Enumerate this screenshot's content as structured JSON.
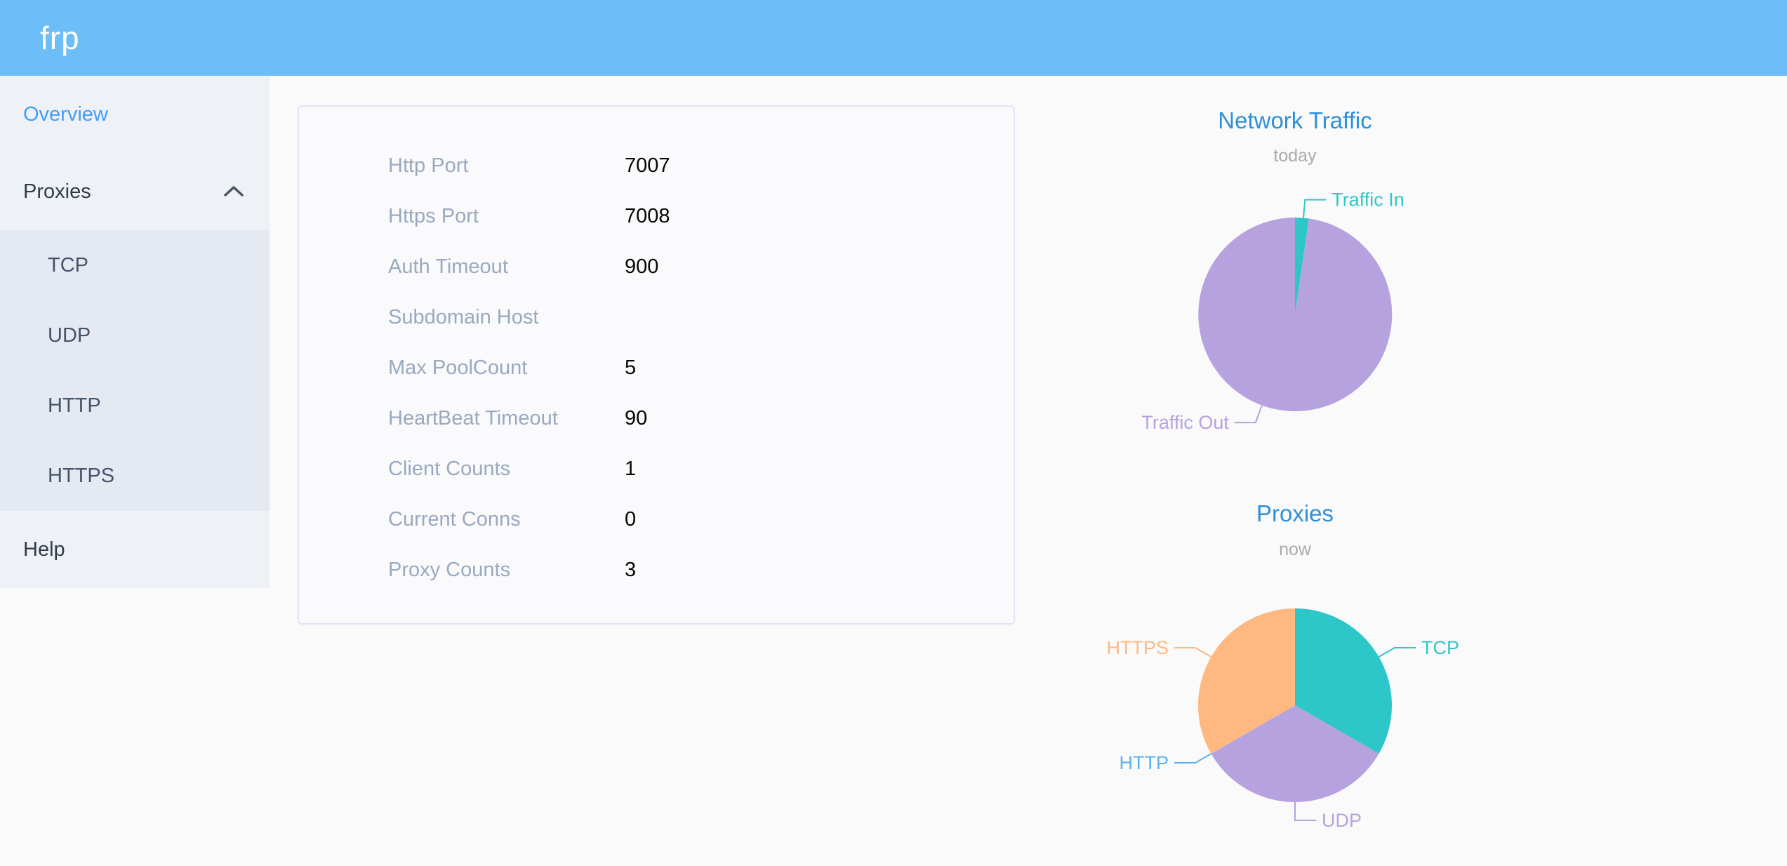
{
  "header": {
    "logo": "frp"
  },
  "sidebar": {
    "items": [
      {
        "label": "Overview",
        "active": true
      },
      {
        "label": "Proxies",
        "expanded": true,
        "children": [
          {
            "label": "TCP"
          },
          {
            "label": "UDP"
          },
          {
            "label": "HTTP"
          },
          {
            "label": "HTTPS"
          }
        ]
      },
      {
        "label": "Help"
      }
    ]
  },
  "server_info": {
    "rows": [
      {
        "label": "Http Port",
        "value": "7007"
      },
      {
        "label": "Https Port",
        "value": "7008"
      },
      {
        "label": "Auth Timeout",
        "value": "900"
      },
      {
        "label": "Subdomain Host",
        "value": ""
      },
      {
        "label": "Max PoolCount",
        "value": "5"
      },
      {
        "label": "HeartBeat Timeout",
        "value": "90"
      },
      {
        "label": "Client Counts",
        "value": "1"
      },
      {
        "label": "Current Conns",
        "value": "0"
      },
      {
        "label": "Proxy Counts",
        "value": "3"
      }
    ]
  },
  "chart_data": [
    {
      "type": "pie",
      "title": "Network Traffic",
      "subtitle": "today",
      "legend_position": "none",
      "labels": "outside-with-connector-lines",
      "slices": [
        {
          "name": "Traffic In",
          "value": 2.3,
          "unit": "% of total (estimated from slice angle)",
          "color": "#2ec7c9",
          "label_angle": 5,
          "side": "right"
        },
        {
          "name": "Traffic Out",
          "value": 97.7,
          "unit": "% of total (estimated from slice angle)",
          "color": "#b6a2de",
          "label_angle": 200,
          "side": "left"
        }
      ]
    },
    {
      "type": "pie",
      "title": "Proxies",
      "subtitle": "now",
      "legend_position": "none",
      "labels": "outside-with-connector-lines",
      "slices": [
        {
          "name": "TCP",
          "value": 1,
          "color": "#2ec7c9",
          "label_angle": 60,
          "side": "right"
        },
        {
          "name": "UDP",
          "value": 1,
          "color": "#b6a2de",
          "label_angle": 180,
          "side": "right"
        },
        {
          "name": "HTTP",
          "value": 0,
          "color": "#5ab1ef",
          "label_angle": 240,
          "side": "left"
        },
        {
          "name": "HTTPS",
          "value": 1,
          "color": "#ffb980",
          "label_angle": 300,
          "side": "left"
        }
      ]
    }
  ],
  "colors": {
    "header_bg": "#6cbdf8",
    "sidebar_bg": "#eef1f6",
    "submenu_bg": "#e5e9f2",
    "active_menu_text": "#419ef9",
    "menu_text": "#323c48",
    "card_label": "#99a9bf",
    "card_value": "#060606",
    "chart_title": "#2e90d9",
    "chart_subtitle": "#aaaaaa",
    "pie_teal": "#2ec7c9",
    "pie_purple": "#b6a2de",
    "pie_blue": "#5ab1ef",
    "pie_orange": "#ffb980"
  }
}
